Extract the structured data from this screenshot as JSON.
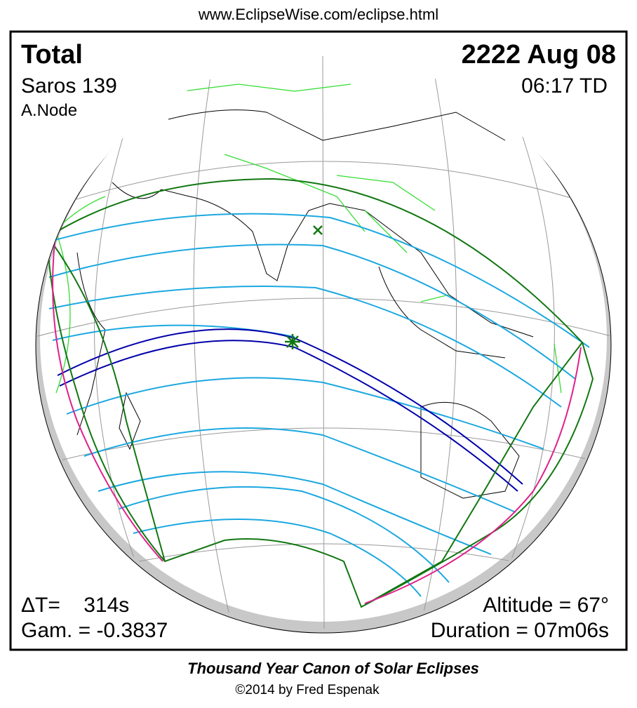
{
  "header": {
    "url": "www.EclipseWise.com/eclipse.html"
  },
  "panel": {
    "eclipse_type": "Total",
    "date": "2222 Aug 08",
    "saros": "Saros 139",
    "time": "06:17 TD",
    "node": "A.Node",
    "delta_t": "ΔT=    314s",
    "gamma": "Gam. = -0.3837",
    "altitude": "Altitude = 67°",
    "duration": "Duration = 07m06s"
  },
  "footer": {
    "title": "Thousand Year Canon of Solar Eclipses",
    "copyright": "©2014 by Fred Espenak"
  }
}
